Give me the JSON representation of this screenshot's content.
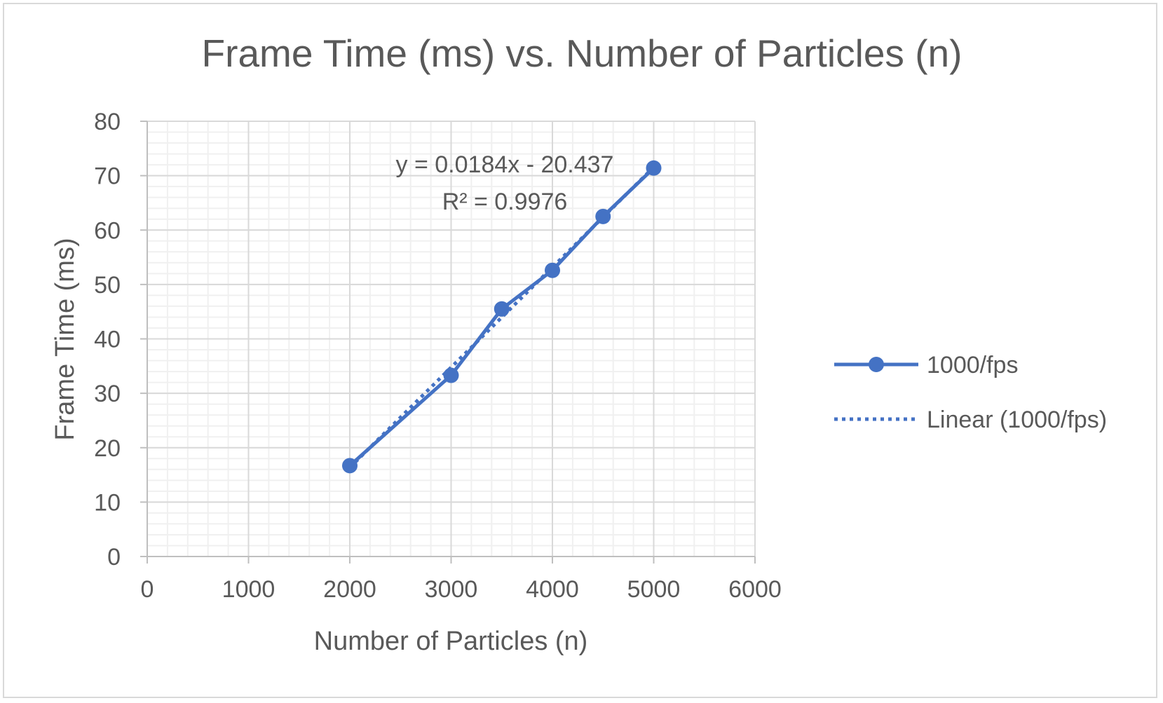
{
  "chart_data": {
    "type": "scatter",
    "title": "Frame Time (ms) vs. Number of Particles (n)",
    "xlabel": "Number of Particles (n)",
    "ylabel": "Frame Time (ms)",
    "xlim": [
      0,
      6000
    ],
    "ylim": [
      0,
      80
    ],
    "x_ticks": [
      "0",
      "1000",
      "2000",
      "3000",
      "4000",
      "5000",
      "6000"
    ],
    "y_ticks": [
      "0",
      "10",
      "20",
      "30",
      "40",
      "50",
      "60",
      "70",
      "80"
    ],
    "grid": true,
    "minor_grid": true,
    "legend_position": "right",
    "series": [
      {
        "name": "1000/fps",
        "color": "#4472c4",
        "marker": "circle",
        "line": "solid",
        "x": [
          2000,
          3000,
          3500,
          4000,
          4500,
          5000
        ],
        "y": [
          16.7,
          33.3,
          45.5,
          52.6,
          62.5,
          71.4
        ]
      }
    ],
    "trendline": {
      "name": "Linear (1000/fps)",
      "type": "linear",
      "style": "dotted",
      "color": "#4472c4",
      "slope": 0.0184,
      "intercept": -20.437,
      "x_range": [
        2000,
        5000
      ],
      "equation_label": "y = 0.0184x - 20.437",
      "r2_label": "R² = 0.9976"
    }
  }
}
